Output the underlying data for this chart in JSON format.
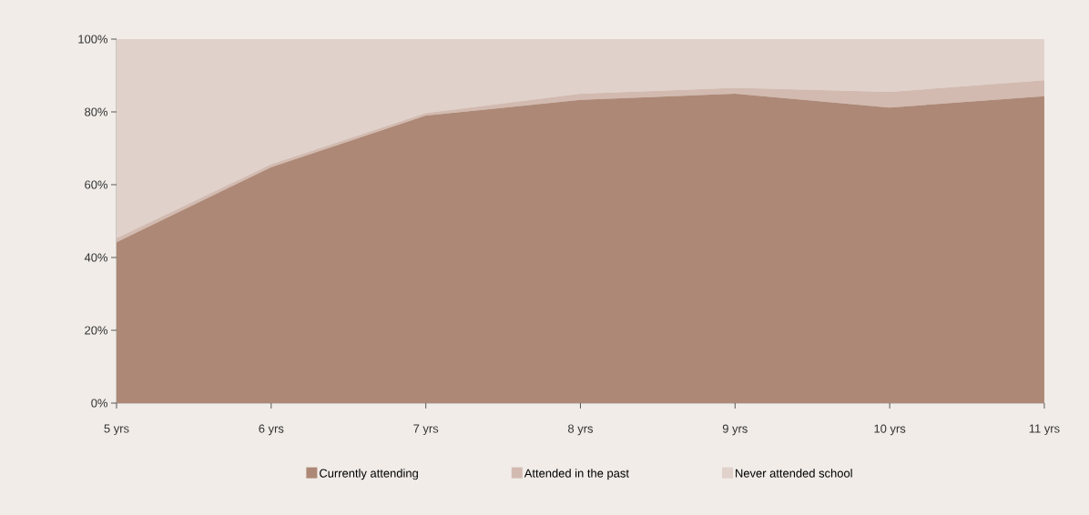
{
  "chart_data": {
    "type": "area",
    "stacked": true,
    "categories": [
      "5 yrs",
      "6 yrs",
      "7 yrs",
      "8 yrs",
      "9 yrs",
      "10 yrs",
      "11 yrs"
    ],
    "series": [
      {
        "name": "Currently attending",
        "color": "#ad8876",
        "values": [
          44.2,
          64.8,
          79,
          83.3,
          85,
          81.2,
          84.3
        ]
      },
      {
        "name": "Attended in the past",
        "color": "#d2bab0",
        "values": [
          1.1,
          0.8,
          0.7,
          1.7,
          1.6,
          4.3,
          4.4
        ]
      },
      {
        "name": "Never attended school",
        "color": "#e0d1ca",
        "values": [
          54.7,
          34.4,
          20.3,
          15,
          13.4,
          14.5,
          11.3
        ]
      }
    ],
    "ylim": [
      0,
      100
    ],
    "yticks": [
      {
        "value": 0,
        "label": "0%"
      },
      {
        "value": 20,
        "label": "20%"
      },
      {
        "value": 40,
        "label": "40%"
      },
      {
        "value": 60,
        "label": "60%"
      },
      {
        "value": 80,
        "label": "80%"
      },
      {
        "value": 100,
        "label": "100%"
      }
    ],
    "grid": false,
    "legend": "bottom"
  }
}
